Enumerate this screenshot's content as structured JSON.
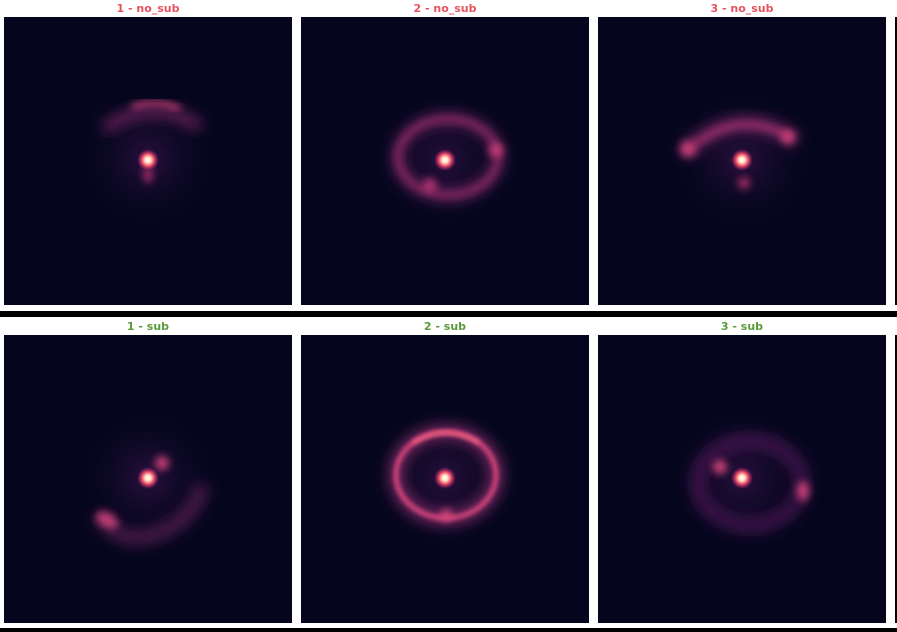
{
  "colors": {
    "no_sub_title": "#e8515e",
    "sub_title": "#5a9a3a",
    "panel_background": "#05061e",
    "arc_color": "#d03a82",
    "core_color": "#fff4e8"
  },
  "rows": [
    {
      "group": "no_sub",
      "panels": [
        {
          "title": "1 - no_sub"
        },
        {
          "title": "2 - no_sub"
        },
        {
          "title": "3 - no_sub"
        }
      ]
    },
    {
      "group": "sub",
      "panels": [
        {
          "title": "1 - sub"
        },
        {
          "title": "2 - sub"
        },
        {
          "title": "3 - sub"
        }
      ]
    }
  ]
}
